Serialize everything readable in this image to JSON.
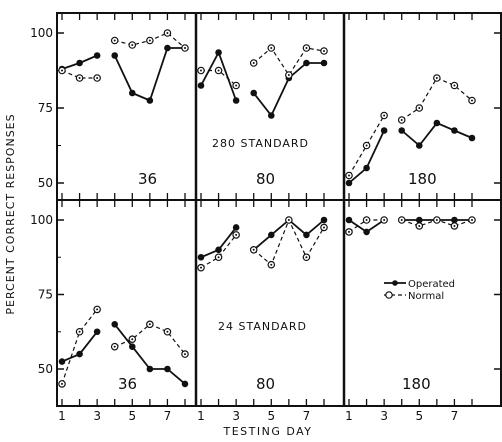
{
  "chart_data": {
    "type": "line",
    "ylabel": "PERCENT CORRECT RESPONSES",
    "xlabel": "TESTING DAY",
    "ylim": [
      45,
      102
    ],
    "yticks": [
      "100",
      "75",
      "50"
    ],
    "xticks": [
      "1",
      "3",
      "5",
      "7"
    ],
    "legend": {
      "position": "right",
      "entries": [
        {
          "name": "Operated",
          "marker": "filled-circle"
        },
        {
          "name": "Normal",
          "marker": "open-circle"
        }
      ]
    },
    "rows": [
      {
        "standard_label": "280 STANDARD"
      },
      {
        "standard_label": "24 STANDARD"
      }
    ],
    "panels": [
      {
        "row": 0,
        "col": 0,
        "label": "36",
        "series": [
          {
            "name": "Operated",
            "segments": [
              {
                "x": [
                  1,
                  2,
                  3
                ],
                "y": [
                  88,
                  90,
                  92.5
                ]
              },
              {
                "x": [
                  4,
                  5,
                  6,
                  7,
                  8
                ],
                "y": [
                  92.5,
                  80,
                  77.5,
                  95,
                  95
                ]
              }
            ]
          },
          {
            "name": "Normal",
            "segments": [
              {
                "x": [
                  1,
                  2,
                  3
                ],
                "y": [
                  87.5,
                  85,
                  85
                ]
              },
              {
                "x": [
                  4,
                  5,
                  6,
                  7,
                  8
                ],
                "y": [
                  97.5,
                  96,
                  97.5,
                  100,
                  95
                ]
              }
            ]
          }
        ]
      },
      {
        "row": 0,
        "col": 1,
        "label": "80",
        "series": [
          {
            "name": "Operated",
            "segments": [
              {
                "x": [
                  1,
                  2,
                  3
                ],
                "y": [
                  82.5,
                  93.5,
                  77.5
                ]
              },
              {
                "x": [
                  4,
                  5,
                  6,
                  7,
                  8
                ],
                "y": [
                  80,
                  72.5,
                  85,
                  90,
                  90
                ]
              }
            ]
          },
          {
            "name": "Normal",
            "segments": [
              {
                "x": [
                  1,
                  2,
                  3
                ],
                "y": [
                  87.5,
                  87.5,
                  82.5
                ]
              },
              {
                "x": [
                  4,
                  5,
                  6,
                  7,
                  8
                ],
                "y": [
                  90,
                  95,
                  86,
                  95,
                  94
                ]
              }
            ]
          }
        ]
      },
      {
        "row": 0,
        "col": 2,
        "label": "180",
        "series": [
          {
            "name": "Operated",
            "segments": [
              {
                "x": [
                  1,
                  2,
                  3
                ],
                "y": [
                  50,
                  55,
                  67.5
                ]
              },
              {
                "x": [
                  4,
                  5,
                  6,
                  7,
                  8
                ],
                "y": [
                  67.5,
                  62.5,
                  70,
                  67.5,
                  65
                ]
              }
            ]
          },
          {
            "name": "Normal",
            "segments": [
              {
                "x": [
                  1,
                  2,
                  3
                ],
                "y": [
                  52.5,
                  62.5,
                  72.5
                ]
              },
              {
                "x": [
                  4,
                  5,
                  6,
                  7,
                  8
                ],
                "y": [
                  71,
                  75,
                  85,
                  82.5,
                  77.5
                ]
              }
            ]
          }
        ]
      },
      {
        "row": 1,
        "col": 0,
        "label": "36",
        "series": [
          {
            "name": "Operated",
            "segments": [
              {
                "x": [
                  1,
                  2,
                  3
                ],
                "y": [
                  52.5,
                  55,
                  62.5
                ]
              },
              {
                "x": [
                  4,
                  5,
                  6,
                  7,
                  8
                ],
                "y": [
                  65,
                  57.5,
                  50,
                  50,
                  45
                ]
              }
            ]
          },
          {
            "name": "Normal",
            "segments": [
              {
                "x": [
                  1,
                  2,
                  3
                ],
                "y": [
                  45,
                  62.5,
                  70
                ]
              },
              {
                "x": [
                  4,
                  5,
                  6,
                  7,
                  8
                ],
                "y": [
                  57.5,
                  60,
                  65,
                  62.5,
                  55
                ]
              }
            ]
          }
        ]
      },
      {
        "row": 1,
        "col": 1,
        "label": "80",
        "series": [
          {
            "name": "Operated",
            "segments": [
              {
                "x": [
                  1,
                  2,
                  3
                ],
                "y": [
                  87.5,
                  90,
                  97.5
                ]
              },
              {
                "x": [
                  4,
                  5,
                  6,
                  7,
                  8
                ],
                "y": [
                  90,
                  95,
                  100,
                  95,
                  100
                ]
              }
            ]
          },
          {
            "name": "Normal",
            "segments": [
              {
                "x": [
                  1,
                  2,
                  3
                ],
                "y": [
                  84,
                  87.5,
                  95
                ]
              },
              {
                "x": [
                  4,
                  5,
                  6,
                  7,
                  8
                ],
                "y": [
                  90,
                  85,
                  100,
                  87.5,
                  97.5
                ]
              }
            ]
          }
        ]
      },
      {
        "row": 1,
        "col": 2,
        "label": "180",
        "series": [
          {
            "name": "Operated",
            "segments": [
              {
                "x": [
                  1,
                  2,
                  3
                ],
                "y": [
                  100,
                  96,
                  100
                ]
              },
              {
                "x": [
                  4,
                  5,
                  6,
                  7,
                  8
                ],
                "y": [
                  100,
                  100,
                  100,
                  100,
                  100
                ]
              }
            ]
          },
          {
            "name": "Normal",
            "segments": [
              {
                "x": [
                  1,
                  2,
                  3
                ],
                "y": [
                  96,
                  100,
                  100
                ]
              },
              {
                "x": [
                  4,
                  5,
                  6,
                  7,
                  8
                ],
                "y": [
                  100,
                  98,
                  100,
                  98,
                  100
                ]
              }
            ]
          }
        ]
      }
    ]
  }
}
